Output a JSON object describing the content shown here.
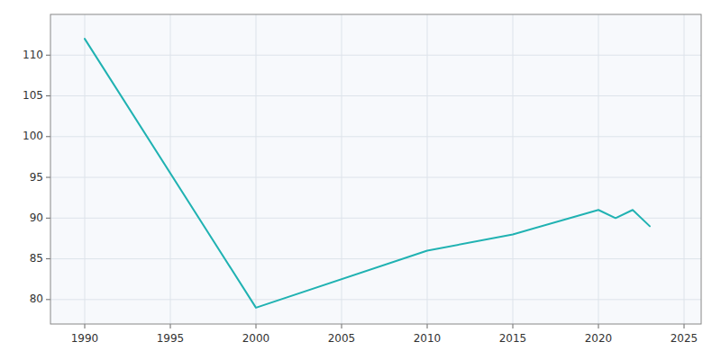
{
  "chart_data": {
    "type": "line",
    "x": [
      1990,
      2000,
      2010,
      2015,
      2020,
      2021,
      2022,
      2023
    ],
    "values": [
      112,
      79,
      86,
      88,
      91,
      90,
      91,
      89
    ],
    "color": "#20B2B2",
    "xlim": [
      1988,
      2026
    ],
    "ylim": [
      77,
      115
    ],
    "xticks": [
      1990,
      1995,
      2000,
      2005,
      2010,
      2015,
      2020,
      2025
    ],
    "yticks": [
      80,
      85,
      90,
      95,
      100,
      105,
      110
    ],
    "grid": true
  }
}
